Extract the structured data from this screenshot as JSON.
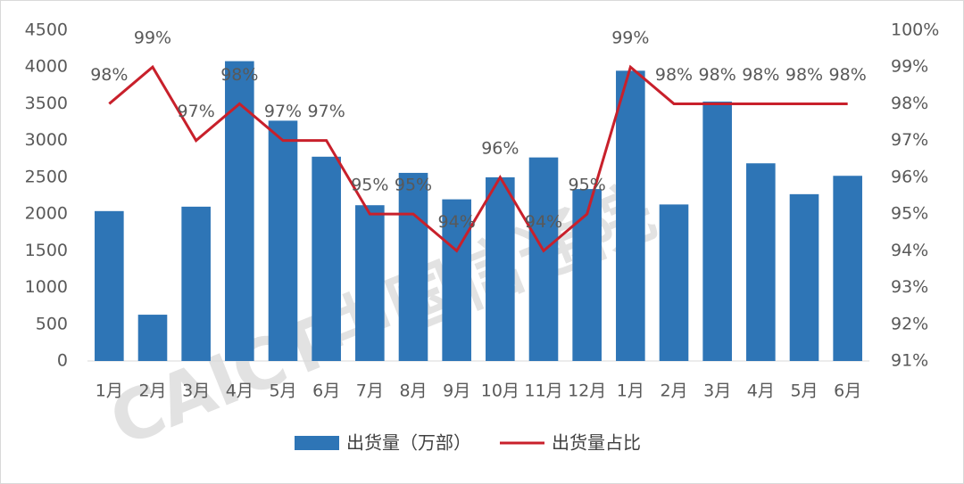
{
  "chart_data": {
    "type": "bar-line",
    "categories": [
      "1月",
      "2月",
      "3月",
      "4月",
      "5月",
      "6月",
      "7月",
      "8月",
      "9月",
      "10月",
      "11月",
      "12月",
      "1月",
      "2月",
      "3月",
      "4月",
      "5月",
      "6月"
    ],
    "series": [
      {
        "name": "出货量（万部）",
        "type": "bar",
        "color": "#2e75b6",
        "values": [
          2040,
          630,
          2100,
          4080,
          3270,
          2780,
          2120,
          2560,
          2200,
          2500,
          2770,
          2340,
          3950,
          2130,
          3530,
          2690,
          2270,
          2520
        ]
      },
      {
        "name": "出货量占比",
        "type": "line",
        "axis": "y2",
        "color": "#c8202b",
        "values": [
          98,
          99,
          97,
          98,
          97,
          97,
          95,
          95,
          94,
          96,
          94,
          95,
          99,
          98,
          98,
          98,
          98,
          98
        ],
        "value_labels": [
          "98%",
          "99%",
          "97%",
          "98%",
          "97%",
          "97%",
          "95%",
          "95%",
          "94%",
          "96%",
          "94%",
          "95%",
          "99%",
          "98%",
          "98%",
          "98%",
          "98%",
          "98%"
        ]
      }
    ],
    "ylim": [
      0,
      4500
    ],
    "yticks": [
      0,
      500,
      1000,
      1500,
      2000,
      2500,
      3000,
      3500,
      4000,
      4500
    ],
    "y2lim": [
      91,
      100
    ],
    "y2ticks": [
      {
        "value": 91,
        "label": "91%"
      },
      {
        "value": 92,
        "label": "92%"
      },
      {
        "value": 93,
        "label": "93%"
      },
      {
        "value": 94,
        "label": "94%"
      },
      {
        "value": 95,
        "label": "95%"
      },
      {
        "value": 96,
        "label": "96%"
      },
      {
        "value": 97,
        "label": "97%"
      },
      {
        "value": 98,
        "label": "98%"
      },
      {
        "value": 99,
        "label": "99%"
      },
      {
        "value": 100,
        "label": "100%"
      }
    ],
    "grid": false,
    "legend": "bottom",
    "watermark": "CAICT中国信通院"
  }
}
